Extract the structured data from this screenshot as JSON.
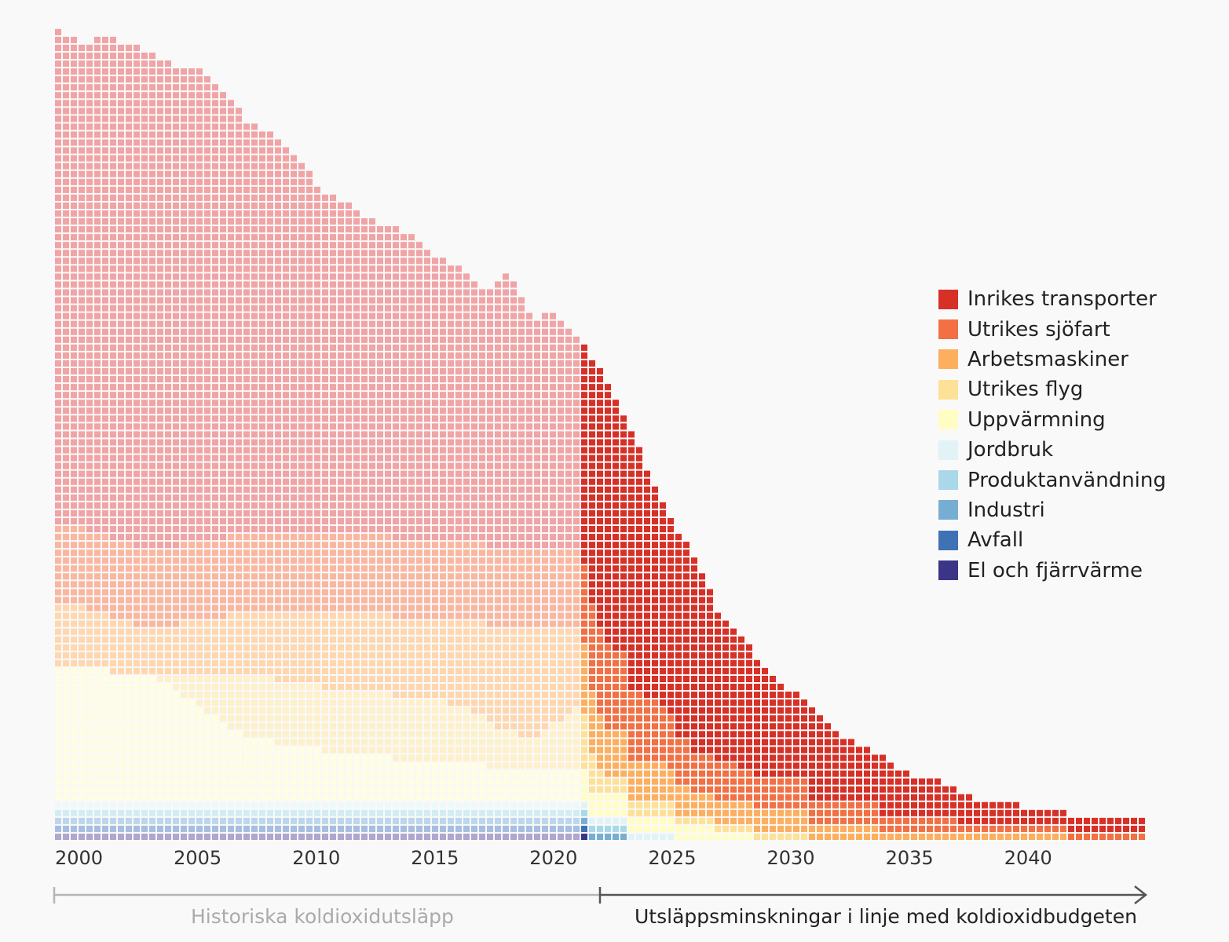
{
  "chart_data": {
    "type": "waffle-area",
    "x_ticks": [
      "2000",
      "2005",
      "2010",
      "2015",
      "2020",
      "2025",
      "2030",
      "2035",
      "2040"
    ],
    "x_range": [
      2000,
      2045
    ],
    "historical_end_year": 2022,
    "series": [
      {
        "name": "El och fjärrvärme",
        "color": "#3b3587",
        "faded": "#b0a6d0"
      },
      {
        "name": "Avfall",
        "color": "#3e72b5",
        "faded": "#a7bee0"
      },
      {
        "name": "Industri",
        "color": "#76aed3",
        "faded": "#bcd7eb"
      },
      {
        "name": "Produktanvändning",
        "color": "#a9d8e8",
        "faded": "#d3ecf4"
      },
      {
        "name": "Jordbruk",
        "color": "#e2f3f8",
        "faded": "#eef8fb"
      },
      {
        "name": "Uppvärmning",
        "color": "#fffdc4",
        "faded": "#fffee2"
      },
      {
        "name": "Utrikes flyg",
        "color": "#fde196",
        "faded": "#fef0cb"
      },
      {
        "name": "Arbetsmaskiner",
        "color": "#fdaf5f",
        "faded": "#fed7b0"
      },
      {
        "name": "Utrikes sjöfart",
        "color": "#f27043",
        "faded": "#f9b7a1"
      },
      {
        "name": "Inrikes transporter",
        "color": "#d73027",
        "faded": "#f0a4a6"
      }
    ],
    "legend_order": [
      "Inrikes transporter",
      "Utrikes sjöfart",
      "Arbetsmaskiner",
      "Utrikes flyg",
      "Uppvärmning",
      "Jordbruk",
      "Produktanvändning",
      "Industri",
      "Avfall",
      "El och fjärrvärme"
    ],
    "total": {
      "x": [
        2000,
        2001,
        2002,
        2003,
        2004,
        2005,
        2006,
        2007,
        2008,
        2009,
        2010,
        2011,
        2012,
        2013,
        2014,
        2015,
        2016,
        2017,
        2018,
        2019,
        2020,
        2021,
        2022,
        2023,
        2024,
        2025,
        2026,
        2027,
        2028,
        2029,
        2030,
        2031,
        2032,
        2033,
        2034,
        2035,
        2036,
        2037,
        2038,
        2039,
        2040,
        2041,
        2042,
        2043,
        2044,
        2045
      ],
      "y": [
        103,
        101,
        102,
        101,
        100,
        98,
        98,
        95,
        91,
        90,
        87,
        83,
        81,
        79,
        78,
        77,
        74,
        73,
        69,
        72,
        66,
        67,
        64,
        59,
        53,
        46,
        40,
        35,
        28,
        25,
        21,
        19,
        16,
        13,
        12,
        10,
        8,
        8,
        6,
        5,
        5,
        4,
        4,
        3,
        3,
        3
      ]
    },
    "stack_columns_bottom_to_top": [
      {
        "year": 2000,
        "counts": [
          1,
          1,
          1,
          1,
          1,
          17,
          0,
          8,
          10,
          63
        ]
      },
      {
        "year": 2004,
        "counts": [
          1,
          1,
          1,
          1,
          1,
          16,
          0,
          6,
          10,
          63
        ]
      },
      {
        "year": 2008,
        "counts": [
          1,
          1,
          1,
          1,
          1,
          8,
          8,
          8,
          10,
          52
        ]
      },
      {
        "year": 2012,
        "counts": [
          1,
          1,
          1,
          1,
          1,
          6,
          8,
          10,
          10,
          42
        ]
      },
      {
        "year": 2016,
        "counts": [
          1,
          1,
          1,
          1,
          1,
          5,
          8,
          10,
          10,
          36
        ]
      },
      {
        "year": 2020,
        "counts": [
          1,
          1,
          1,
          1,
          1,
          4,
          4,
          14,
          10,
          29
        ]
      },
      {
        "year": 2022,
        "counts": [
          1,
          1,
          1,
          1,
          1,
          4,
          8,
          10,
          10,
          27
        ]
      },
      {
        "year": 2023,
        "counts": [
          0,
          0,
          1,
          1,
          1,
          3,
          2,
          6,
          11,
          34
        ]
      },
      {
        "year": 2025,
        "counts": [
          0,
          0,
          0,
          0,
          1,
          2,
          2,
          5,
          8,
          28
        ]
      },
      {
        "year": 2027,
        "counts": [
          0,
          0,
          0,
          0,
          0,
          2,
          1,
          3,
          5,
          24
        ]
      },
      {
        "year": 2030,
        "counts": [
          0,
          0,
          0,
          0,
          0,
          0,
          1,
          3,
          4,
          13
        ]
      },
      {
        "year": 2033,
        "counts": [
          0,
          0,
          0,
          0,
          0,
          0,
          0,
          2,
          3,
          8
        ]
      },
      {
        "year": 2036,
        "counts": [
          0,
          0,
          0,
          0,
          0,
          0,
          0,
          1,
          2,
          5
        ]
      },
      {
        "year": 2040,
        "counts": [
          0,
          0,
          0,
          0,
          0,
          0,
          0,
          1,
          1,
          3
        ]
      },
      {
        "year": 2045,
        "counts": [
          0,
          0,
          0,
          0,
          0,
          0,
          0,
          0,
          1,
          2
        ]
      }
    ],
    "timeline": {
      "historical_label": "Historiska koldioxidutsläpp",
      "future_label": "Utsläppsminskningar i linje med koldioxidbudgeten"
    }
  }
}
